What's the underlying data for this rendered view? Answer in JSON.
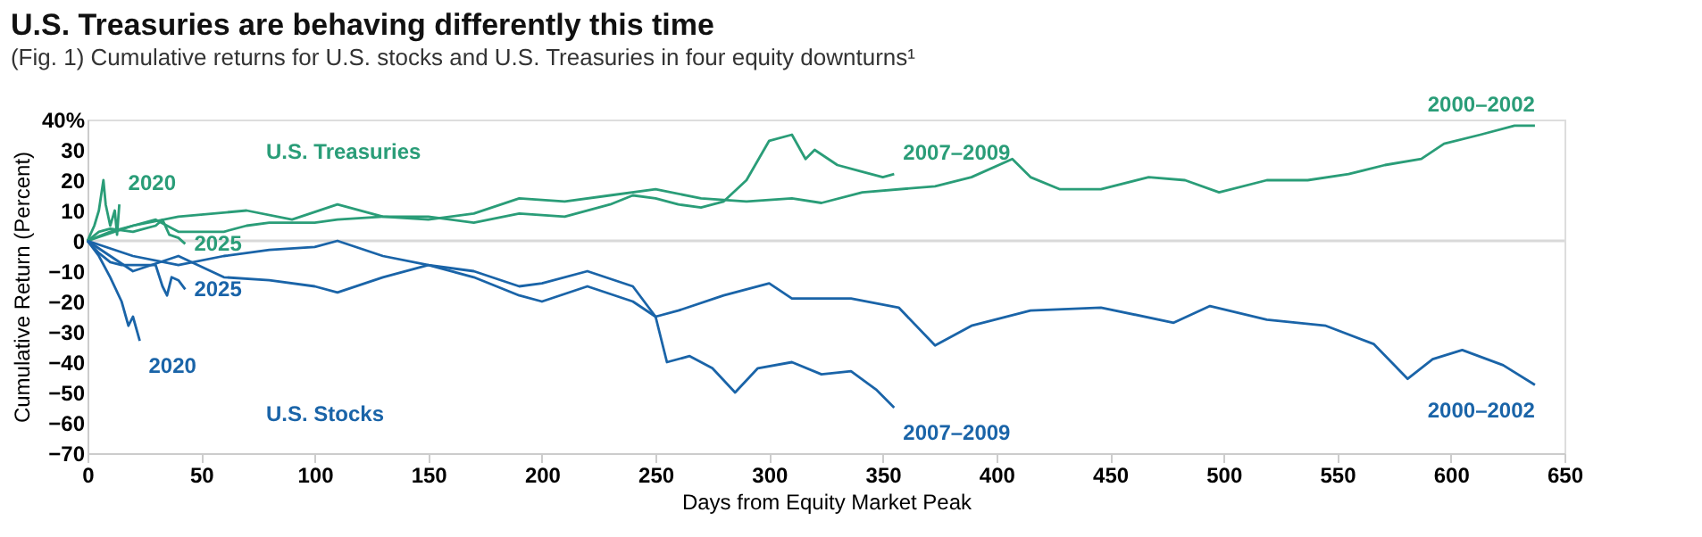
{
  "chart_data": {
    "type": "line",
    "title": "U.S. Treasuries are behaving differently this time",
    "subtitle": "(Fig. 1) Cumulative returns for U.S. stocks and U.S. Treasuries in four equity downturns¹",
    "xlabel": "Days from Equity Market Peak",
    "ylabel": "Cumulative Return (Percent)",
    "xlim": [
      0,
      650
    ],
    "xticks": [
      0,
      50,
      100,
      150,
      200,
      250,
      300,
      350,
      400,
      450,
      500,
      550,
      600,
      650
    ],
    "ylim": [
      -70,
      40
    ],
    "yticks": [
      {
        "value": 40,
        "label": "40%"
      },
      30,
      20,
      10,
      0,
      -10,
      -20,
      -30,
      -40,
      -50,
      -60,
      -70
    ],
    "grid": false,
    "line_style": "solid",
    "marker": "none",
    "ref_lines": [
      {
        "axis": "y",
        "value": 0,
        "color": "#d9d9d9"
      }
    ],
    "annotations": [
      "U.S. Treasuries",
      "U.S. Stocks"
    ],
    "series": [
      {
        "name": "2000–2002",
        "color": "#2a9d78",
        "x": [
          0,
          20,
          40,
          70,
          90,
          110,
          130,
          150,
          170,
          190,
          210,
          230,
          250,
          270,
          290,
          310,
          323,
          341,
          373,
          389,
          407,
          415,
          428,
          446,
          467,
          483,
          498,
          519,
          537,
          555,
          571,
          587,
          597,
          613,
          628,
          637
        ],
        "values": [
          0,
          5,
          8,
          10,
          7,
          12,
          8,
          7,
          9,
          14,
          13,
          15,
          17,
          14,
          13,
          14,
          12.5,
          16,
          18,
          21,
          27,
          21,
          17,
          17,
          21,
          20,
          16,
          20,
          20,
          22,
          25,
          27,
          32,
          35,
          38,
          38
        ]
      },
      {
        "name": "2007–2009",
        "color": "#2a9d78",
        "x": [
          0,
          10,
          20,
          30,
          40,
          50,
          60,
          70,
          80,
          100,
          110,
          130,
          150,
          170,
          190,
          210,
          230,
          240,
          250,
          260,
          270,
          280,
          290,
          300,
          310,
          316,
          320,
          330,
          340,
          350,
          355
        ],
        "values": [
          0,
          3,
          5,
          7,
          3,
          3,
          3,
          5,
          6,
          6,
          7,
          8,
          8,
          6,
          9,
          8,
          12,
          15,
          14,
          12,
          11,
          13,
          20,
          33,
          35,
          27,
          30,
          25,
          23,
          21,
          22
        ]
      },
      {
        "name": "2020",
        "color": "#2a9d78",
        "x": [
          0,
          3,
          5,
          7,
          8,
          10,
          12,
          13,
          14
        ],
        "values": [
          0,
          5,
          10,
          20,
          12,
          5,
          10,
          2,
          12
        ]
      },
      {
        "name": "2025",
        "color": "#2a9d78",
        "x": [
          0,
          5,
          10,
          20,
          30,
          33,
          36,
          40,
          43
        ],
        "values": [
          0,
          3,
          4,
          3,
          5,
          7,
          2,
          1,
          -1
        ]
      },
      {
        "name": "2000–2002",
        "color": "#1a64a8",
        "x": [
          0,
          20,
          40,
          60,
          80,
          100,
          110,
          130,
          150,
          170,
          190,
          200,
          220,
          240,
          250,
          260,
          280,
          300,
          310,
          336,
          357,
          373,
          389,
          415,
          446,
          478,
          494,
          519,
          545,
          566,
          581,
          592,
          605,
          623,
          637
        ],
        "values": [
          0,
          -10,
          -5,
          -12,
          -13,
          -15,
          -17,
          -12,
          -8,
          -12,
          -18,
          -20,
          -15,
          -20,
          -25,
          -23,
          -18,
          -14,
          -19,
          -19,
          -22,
          -34.5,
          -28,
          -23,
          -22,
          -27,
          -21.5,
          -26,
          -28,
          -34,
          -45.5,
          -39,
          -36,
          -41,
          -47.5
        ]
      },
      {
        "name": "2007–2009",
        "color": "#1a64a8",
        "x": [
          0,
          20,
          40,
          60,
          80,
          100,
          110,
          130,
          150,
          170,
          190,
          200,
          220,
          240,
          250,
          255,
          265,
          275,
          285,
          295,
          310,
          323,
          336,
          347,
          355
        ],
        "values": [
          0,
          -5,
          -8,
          -5,
          -3,
          -2,
          0,
          -5,
          -8,
          -10,
          -15,
          -14,
          -10,
          -15,
          -25,
          -40,
          -38,
          -42,
          -50,
          -42,
          -40,
          -44,
          -43,
          -49,
          -55
        ]
      },
      {
        "name": "2020",
        "color": "#1a64a8",
        "x": [
          0,
          5,
          10,
          15,
          18,
          20,
          23
        ],
        "values": [
          0,
          -5,
          -12,
          -20,
          -28,
          -25,
          -33
        ]
      },
      {
        "name": "2025",
        "color": "#1a64a8",
        "x": [
          0,
          5,
          10,
          15,
          20,
          25,
          30,
          33,
          35,
          37,
          40,
          43
        ],
        "values": [
          0,
          -4,
          -7,
          -8,
          -8,
          -8,
          -8,
          -15,
          -18,
          -12,
          -13,
          -16
        ]
      }
    ]
  }
}
